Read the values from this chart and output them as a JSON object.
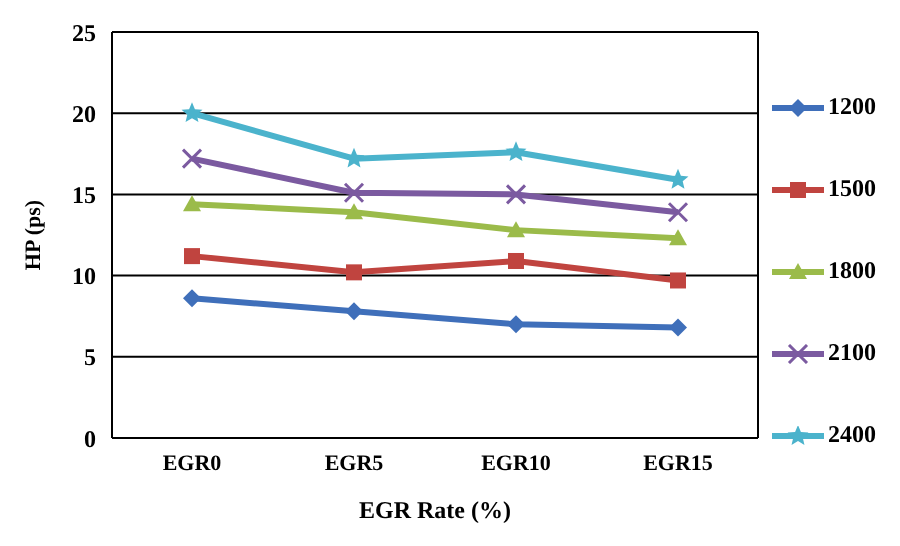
{
  "chart_data": {
    "type": "line",
    "xlabel": "EGR  Rate  (%)",
    "ylabel": "HP  (ps)",
    "categories": [
      "EGR0",
      "EGR5",
      "EGR10",
      "EGR15"
    ],
    "ylim": [
      0,
      25
    ],
    "yticks": [
      0,
      5,
      10,
      15,
      20,
      25
    ],
    "grid": "y",
    "legend": "right",
    "series": [
      {
        "name": "1200",
        "color": "#3f6fba",
        "marker": "diamond",
        "values": [
          8.6,
          7.8,
          7.0,
          6.8
        ]
      },
      {
        "name": "1500",
        "color": "#c0443f",
        "marker": "square",
        "values": [
          11.2,
          10.2,
          10.9,
          9.7
        ]
      },
      {
        "name": "1800",
        "color": "#9bbb4a",
        "marker": "triangle",
        "values": [
          14.4,
          13.9,
          12.8,
          12.3
        ]
      },
      {
        "name": "2100",
        "color": "#7b5aa0",
        "marker": "cross",
        "values": [
          17.2,
          15.1,
          15.0,
          13.9
        ]
      },
      {
        "name": "2400",
        "color": "#4bb3cc",
        "marker": "star",
        "values": [
          20.0,
          17.2,
          17.6,
          15.9
        ]
      }
    ]
  }
}
